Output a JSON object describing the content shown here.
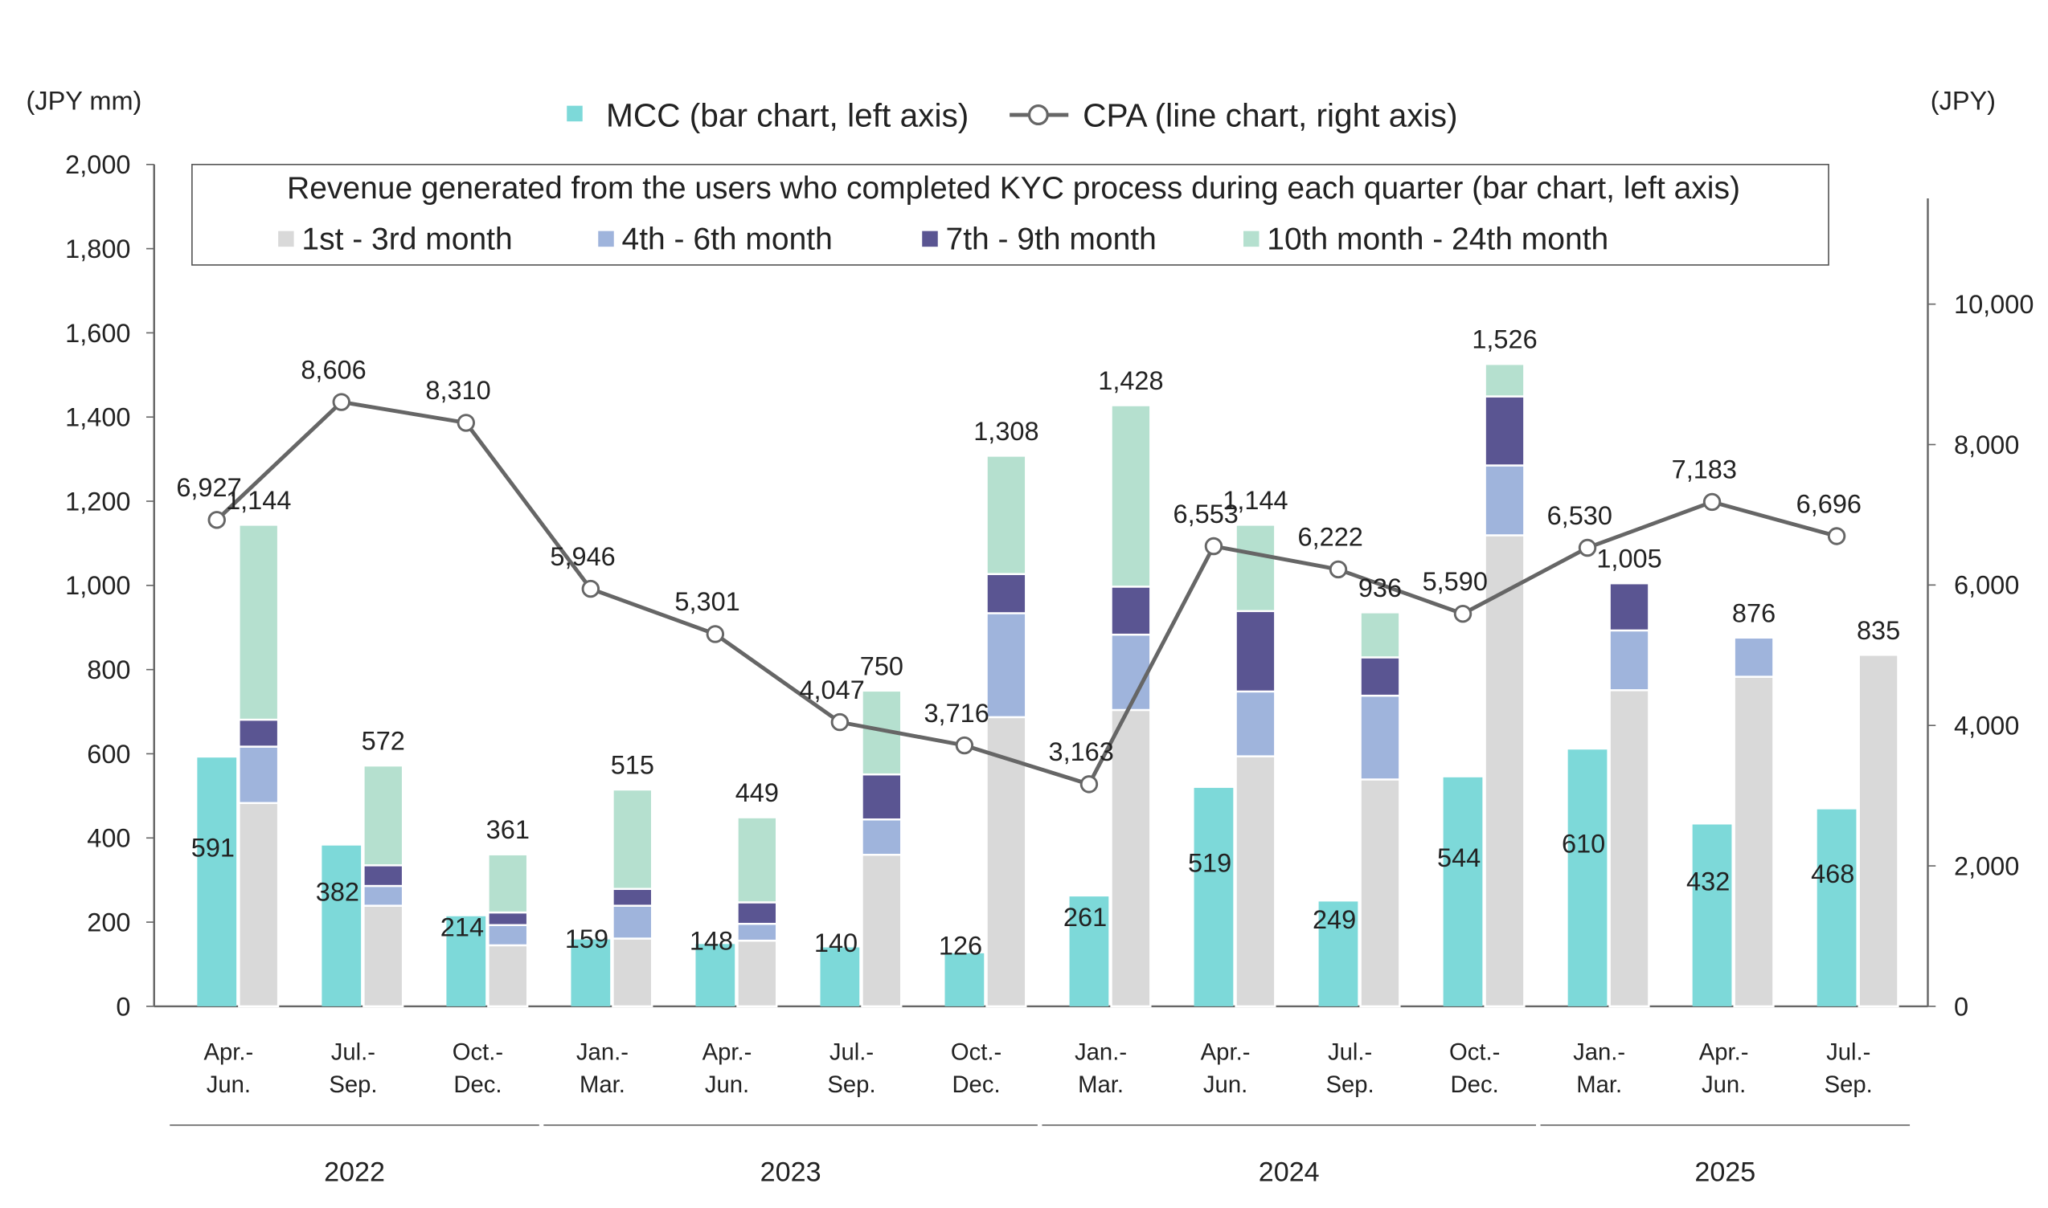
{
  "chart_data": {
    "type": "bar+line",
    "legend_top": {
      "mcc_label": "MCC (bar chart, left axis)",
      "cpa_label": "CPA (line chart, right axis)"
    },
    "box_title": "Revenue generated from the users who completed KYC process during each quarter (bar chart, left axis)",
    "left_axis_unit": "(JPY mm)",
    "right_axis_unit": "(JPY)",
    "left_ylim": [
      0,
      2000
    ],
    "left_ticks": [
      "0",
      "200",
      "400",
      "600",
      "800",
      "1,000",
      "1,200",
      "1,400",
      "1,600",
      "1,800",
      "2,000"
    ],
    "right_ylim": [
      0,
      12000
    ],
    "right_ticks": [
      "0",
      "2,000",
      "4,000",
      "6,000",
      "8,000",
      "10,000"
    ],
    "categories": [
      [
        "Apr.-",
        "Jun."
      ],
      [
        "Jul.-",
        "Sep."
      ],
      [
        "Oct.-",
        "Dec."
      ],
      [
        "Jan.-",
        "Mar."
      ],
      [
        "Apr.-",
        "Jun."
      ],
      [
        "Jul.-",
        "Sep."
      ],
      [
        "Oct.-",
        "Dec."
      ],
      [
        "Jan.-",
        "Mar."
      ],
      [
        "Apr.-",
        "Jun."
      ],
      [
        "Jul.-",
        "Sep."
      ],
      [
        "Oct.-",
        "Dec."
      ],
      [
        "Jan.-",
        "Mar."
      ],
      [
        "Apr.-",
        "Jun."
      ],
      [
        "Jul.-",
        "Sep."
      ]
    ],
    "years": [
      {
        "label": "2022",
        "from": 0,
        "to": 2
      },
      {
        "label": "2023",
        "from": 3,
        "to": 6
      },
      {
        "label": "2024",
        "from": 7,
        "to": 10
      },
      {
        "label": "2025",
        "from": 11,
        "to": 13
      }
    ],
    "mcc": {
      "name": "MCC",
      "color": "#7dd9d9",
      "values": [
        591,
        382,
        214,
        159,
        148,
        140,
        126,
        261,
        519,
        249,
        544,
        610,
        432,
        468
      ],
      "labels": [
        "591",
        "382",
        "214",
        "159",
        "148",
        "140",
        "126",
        "261",
        "519",
        "249",
        "544",
        "610",
        "432",
        "468"
      ]
    },
    "cpa": {
      "name": "CPA",
      "color": "#666666",
      "values": [
        6927,
        8606,
        8310,
        5946,
        5301,
        4047,
        3716,
        3163,
        6553,
        6222,
        5590,
        6530,
        7183,
        6696
      ],
      "labels": [
        "6,927",
        "8,606",
        "8,310",
        "5,946",
        "5,301",
        "4,047",
        "3,716",
        "3,163",
        "6,553",
        "6,222",
        "5,590",
        "6,530",
        "7,183",
        "6,696"
      ]
    },
    "revenue_stack": {
      "series": [
        {
          "name": "1st - 3rd month",
          "color": "#d9d9d9",
          "values": [
            483,
            239,
            145,
            161,
            156,
            360,
            687,
            704,
            594,
            539,
            1119,
            751,
            783,
            835
          ]
        },
        {
          "name": "4th - 6th month",
          "color": "#9fb4dc",
          "values": [
            134,
            47,
            48,
            78,
            40,
            84,
            247,
            179,
            154,
            199,
            166,
            142,
            93,
            0
          ]
        },
        {
          "name": "7th - 9th month",
          "color": "#5a5592",
          "values": [
            64,
            49,
            30,
            40,
            51,
            107,
            93,
            114,
            191,
            91,
            164,
            112,
            0,
            0
          ]
        },
        {
          "name": "10th month - 24th month",
          "color": "#b5e0cf",
          "values": [
            463,
            237,
            138,
            236,
            202,
            199,
            281,
            431,
            205,
            107,
            77,
            0,
            0,
            0
          ]
        }
      ],
      "totals": [
        1144,
        572,
        361,
        515,
        449,
        750,
        1308,
        1428,
        1144,
        936,
        1526,
        1005,
        876,
        835
      ],
      "total_labels": [
        "1,144",
        "572",
        "361",
        "515",
        "449",
        "750",
        "1,308",
        "1,428",
        "1,144",
        "936",
        "1,526",
        "1,005",
        "876",
        "835"
      ]
    }
  }
}
